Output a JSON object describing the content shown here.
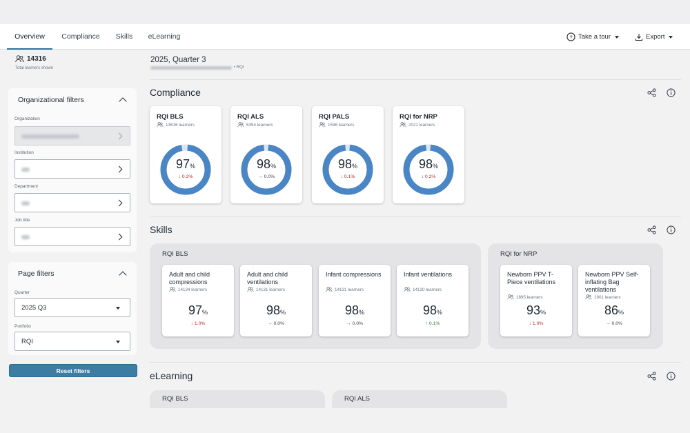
{
  "nav": {
    "tabs": [
      {
        "label": "Overview",
        "active": true
      },
      {
        "label": "Compliance"
      },
      {
        "label": "Skills"
      },
      {
        "label": "eLearning"
      }
    ],
    "tour_label": "Take a tour",
    "export_label": "Export"
  },
  "sidebar": {
    "total_learners": "14316",
    "total_learners_caption": "Total learners shown",
    "org_filters": {
      "title": "Organizational filters",
      "organization_label": "Organization",
      "institution_label": "Institution",
      "department_label": "Department",
      "job_title_label": "Job title"
    },
    "page_filters": {
      "title": "Page filters",
      "quarter_label": "Quarter",
      "quarter_value": "2025 Q3",
      "portfolio_label": "Portfolio",
      "portfolio_value": "RQI"
    },
    "reset_label": "Reset filters"
  },
  "main": {
    "title": "2025, Quarter 3",
    "breadcrumb_tail": "• RQI",
    "compliance": {
      "title": "Compliance",
      "cards": [
        {
          "title": "RQI BLS",
          "learners": "13616 learners",
          "value": "97",
          "unit": "%",
          "delta": "↓ 0.2%",
          "trend": "down",
          "fraction": 0.97
        },
        {
          "title": "RQI ALS",
          "learners": "6354 learners",
          "value": "98",
          "unit": "%",
          "delta": "→ 0.0%",
          "trend": "flat",
          "fraction": 0.98
        },
        {
          "title": "RQI PALS",
          "learners": "1598 learners",
          "value": "98",
          "unit": "%",
          "delta": "↓ 0.1%",
          "trend": "down",
          "fraction": 0.98
        },
        {
          "title": "RQI for NRP",
          "learners": "2021 learners",
          "value": "98",
          "unit": "%",
          "delta": "↓ 0.2%",
          "trend": "down",
          "fraction": 0.98
        }
      ]
    },
    "skills": {
      "title": "Skills",
      "groups": [
        {
          "title": "RQI BLS",
          "cards": [
            {
              "title": "Adult and child compressions",
              "learners": "14134 learners",
              "value": "97",
              "unit": "%",
              "delta": "↓ 1.0%",
              "trend": "down"
            },
            {
              "title": "Adult and child ventilations",
              "learners": "14131 learners",
              "value": "98",
              "unit": "%",
              "delta": "→ 0.0%",
              "trend": "flat"
            },
            {
              "title": "Infant compressions",
              "learners": "14131 learners",
              "value": "98",
              "unit": "%",
              "delta": "→ 0.0%",
              "trend": "flat"
            },
            {
              "title": "Infant ventilations",
              "learners": "14130 learners",
              "value": "98",
              "unit": "%",
              "delta": "↑ 0.1%",
              "trend": "up"
            }
          ]
        },
        {
          "title": "RQI for NRP",
          "cards": [
            {
              "title": "Newborn PPV T-Piece ventilations",
              "learners": "1895 learners",
              "value": "93",
              "unit": "%",
              "delta": "↓ 1.0%",
              "trend": "down"
            },
            {
              "title": "Newborn PPV Self-inflating Bag ventilations",
              "learners": "1901 learners",
              "value": "86",
              "unit": "%",
              "delta": "→ 0.0%",
              "trend": "flat"
            }
          ]
        }
      ]
    },
    "elearning": {
      "title": "eLearning",
      "cards": [
        {
          "title": "RQI BLS"
        },
        {
          "title": "RQI ALS"
        }
      ]
    }
  },
  "colors": {
    "accent": "#2f6f97",
    "donut": "#4a86c5",
    "down": "#b0292e",
    "up": "#2a7d35",
    "reset_button": "#3d7da4"
  },
  "icons": [
    "people-icon",
    "help-circle-icon",
    "download-icon",
    "share-icon",
    "info-icon",
    "chevron-up-icon",
    "chevron-right-icon",
    "caret-down-icon"
  ]
}
